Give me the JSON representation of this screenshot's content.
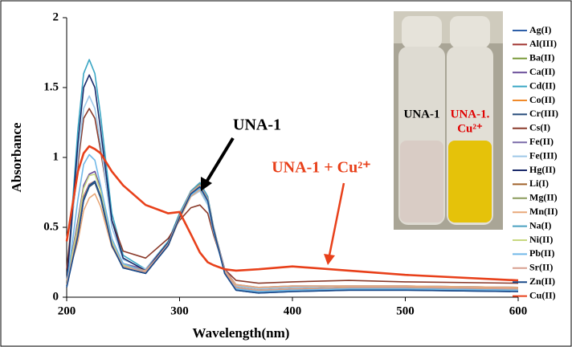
{
  "chart_data": {
    "type": "line",
    "x_label": "Wavelength(nm)",
    "y_label": "Absorbance",
    "xlim": [
      200,
      600
    ],
    "xticks": [
      200,
      300,
      400,
      500,
      600
    ],
    "ylim": [
      0,
      2
    ],
    "yticks": [
      0,
      0.5,
      1,
      1.5,
      2
    ],
    "x": [
      200,
      210,
      215,
      220,
      225,
      230,
      240,
      250,
      270,
      290,
      300,
      310,
      318,
      325,
      330,
      340,
      350,
      370,
      400,
      450,
      500,
      600
    ],
    "series": [
      {
        "name": "Ag(I)",
        "color": "#2e5fa8",
        "values": [
          0.08,
          0.45,
          0.7,
          0.8,
          0.82,
          0.71,
          0.37,
          0.21,
          0.17,
          0.37,
          0.57,
          0.74,
          0.79,
          0.69,
          0.49,
          0.17,
          0.05,
          0.03,
          0.04,
          0.05,
          0.05,
          0.04
        ]
      },
      {
        "name": "Al(III)",
        "color": "#a0332f",
        "values": [
          0.1,
          0.48,
          0.72,
          0.81,
          0.83,
          0.72,
          0.38,
          0.22,
          0.18,
          0.38,
          0.58,
          0.75,
          0.8,
          0.7,
          0.5,
          0.18,
          0.07,
          0.05,
          0.06,
          0.07,
          0.07,
          0.06
        ]
      },
      {
        "name": "Ba(II)",
        "color": "#7a9a3a",
        "values": [
          0.09,
          0.46,
          0.7,
          0.79,
          0.82,
          0.71,
          0.37,
          0.21,
          0.18,
          0.37,
          0.57,
          0.74,
          0.79,
          0.69,
          0.49,
          0.18,
          0.07,
          0.05,
          0.06,
          0.07,
          0.07,
          0.06
        ]
      },
      {
        "name": "Ca(II)",
        "color": "#6a4e9a",
        "values": [
          0.1,
          0.55,
          0.8,
          0.88,
          0.9,
          0.78,
          0.4,
          0.23,
          0.18,
          0.38,
          0.58,
          0.75,
          0.8,
          0.7,
          0.5,
          0.18,
          0.07,
          0.05,
          0.06,
          0.07,
          0.07,
          0.06
        ]
      },
      {
        "name": "Cd(II)",
        "color": "#3aa6c4",
        "values": [
          0.1,
          1.2,
          1.6,
          1.7,
          1.6,
          1.3,
          0.6,
          0.3,
          0.2,
          0.4,
          0.6,
          0.76,
          0.8,
          0.7,
          0.5,
          0.2,
          0.08,
          0.06,
          0.07,
          0.08,
          0.08,
          0.07
        ]
      },
      {
        "name": "Co(II)",
        "color": "#f08a2a",
        "values": [
          0.12,
          0.47,
          0.71,
          0.8,
          0.82,
          0.72,
          0.39,
          0.23,
          0.19,
          0.38,
          0.58,
          0.74,
          0.79,
          0.7,
          0.5,
          0.19,
          0.08,
          0.06,
          0.07,
          0.08,
          0.08,
          0.07
        ]
      },
      {
        "name": "Cr(III)",
        "color": "#254a7a",
        "values": [
          0.08,
          0.44,
          0.69,
          0.79,
          0.82,
          0.71,
          0.37,
          0.21,
          0.17,
          0.37,
          0.57,
          0.74,
          0.79,
          0.69,
          0.49,
          0.17,
          0.06,
          0.04,
          0.05,
          0.06,
          0.06,
          0.05
        ]
      },
      {
        "name": "Cs(I)",
        "color": "#8a3a2a",
        "values": [
          0.2,
          0.95,
          1.28,
          1.35,
          1.28,
          1.05,
          0.55,
          0.33,
          0.28,
          0.42,
          0.55,
          0.64,
          0.66,
          0.6,
          0.45,
          0.2,
          0.12,
          0.1,
          0.11,
          0.12,
          0.11,
          0.1
        ]
      },
      {
        "name": "Fe(II)",
        "color": "#7a6aa8",
        "values": [
          0.1,
          0.47,
          0.71,
          0.8,
          0.83,
          0.72,
          0.39,
          0.24,
          0.2,
          0.39,
          0.58,
          0.74,
          0.78,
          0.69,
          0.5,
          0.2,
          0.09,
          0.07,
          0.08,
          0.08,
          0.08,
          0.07
        ]
      },
      {
        "name": "Fe(III)",
        "color": "#9ec8e8",
        "values": [
          0.1,
          1.0,
          1.35,
          1.44,
          1.35,
          1.1,
          0.5,
          0.27,
          0.2,
          0.38,
          0.57,
          0.72,
          0.76,
          0.66,
          0.47,
          0.19,
          0.08,
          0.06,
          0.07,
          0.08,
          0.08,
          0.07
        ]
      },
      {
        "name": "Hg(II)",
        "color": "#1a2a6a",
        "values": [
          0.1,
          1.1,
          1.5,
          1.59,
          1.5,
          1.2,
          0.55,
          0.28,
          0.19,
          0.39,
          0.59,
          0.74,
          0.78,
          0.68,
          0.48,
          0.18,
          0.07,
          0.05,
          0.06,
          0.07,
          0.07,
          0.06
        ]
      },
      {
        "name": "Li(I)",
        "color": "#a0622a",
        "values": [
          0.09,
          0.46,
          0.7,
          0.8,
          0.83,
          0.72,
          0.38,
          0.22,
          0.18,
          0.38,
          0.58,
          0.75,
          0.8,
          0.7,
          0.5,
          0.18,
          0.07,
          0.05,
          0.06,
          0.07,
          0.07,
          0.06
        ]
      },
      {
        "name": "Mg(II)",
        "color": "#8a9a5a",
        "values": [
          0.08,
          0.45,
          0.7,
          0.8,
          0.83,
          0.72,
          0.38,
          0.22,
          0.18,
          0.38,
          0.58,
          0.76,
          0.81,
          0.71,
          0.5,
          0.18,
          0.07,
          0.05,
          0.06,
          0.07,
          0.07,
          0.06
        ]
      },
      {
        "name": "Mn(II)",
        "color": "#e8a87a",
        "values": [
          0.12,
          0.4,
          0.62,
          0.71,
          0.74,
          0.65,
          0.36,
          0.22,
          0.19,
          0.37,
          0.56,
          0.72,
          0.77,
          0.68,
          0.49,
          0.19,
          0.09,
          0.07,
          0.08,
          0.08,
          0.08,
          0.07
        ]
      },
      {
        "name": "Na(I)",
        "color": "#4aa0c0",
        "values": [
          0.08,
          0.45,
          0.7,
          0.8,
          0.83,
          0.72,
          0.38,
          0.22,
          0.18,
          0.38,
          0.59,
          0.76,
          0.82,
          0.72,
          0.51,
          0.18,
          0.06,
          0.04,
          0.05,
          0.06,
          0.06,
          0.05
        ]
      },
      {
        "name": "Ni(II)",
        "color": "#c8d880",
        "values": [
          0.1,
          0.52,
          0.78,
          0.87,
          0.88,
          0.76,
          0.4,
          0.23,
          0.18,
          0.38,
          0.58,
          0.75,
          0.8,
          0.7,
          0.5,
          0.18,
          0.07,
          0.05,
          0.06,
          0.07,
          0.07,
          0.06
        ]
      },
      {
        "name": "Pb(II)",
        "color": "#70b8e8",
        "values": [
          0.08,
          0.7,
          0.95,
          1.02,
          0.98,
          0.8,
          0.42,
          0.24,
          0.18,
          0.38,
          0.58,
          0.73,
          0.78,
          0.68,
          0.48,
          0.17,
          0.06,
          0.04,
          0.05,
          0.06,
          0.06,
          0.05
        ]
      },
      {
        "name": "Sr(II)",
        "color": "#d8a090",
        "values": [
          0.09,
          0.46,
          0.71,
          0.81,
          0.83,
          0.72,
          0.38,
          0.22,
          0.18,
          0.38,
          0.58,
          0.75,
          0.8,
          0.7,
          0.5,
          0.18,
          0.07,
          0.05,
          0.06,
          0.07,
          0.07,
          0.06
        ]
      },
      {
        "name": "Zn(II)",
        "color": "#1a4a8a",
        "values": [
          0.07,
          0.44,
          0.7,
          0.8,
          0.83,
          0.72,
          0.37,
          0.21,
          0.17,
          0.37,
          0.57,
          0.74,
          0.79,
          0.69,
          0.49,
          0.17,
          0.05,
          0.03,
          0.04,
          0.05,
          0.05,
          0.04
        ]
      },
      {
        "name": "Cu(II)",
        "color": "#e8401a",
        "values": [
          0.4,
          0.9,
          1.03,
          1.08,
          1.06,
          1.03,
          0.9,
          0.8,
          0.66,
          0.6,
          0.61,
          0.45,
          0.32,
          0.25,
          0.23,
          0.2,
          0.19,
          0.2,
          0.22,
          0.19,
          0.16,
          0.12
        ]
      }
    ],
    "annotations": [
      "UNA-1",
      "UNA-1 + Cu²⁺"
    ],
    "inset_labels": [
      "UNA-1",
      "UNA-1.",
      "Cu²⁺"
    ]
  }
}
